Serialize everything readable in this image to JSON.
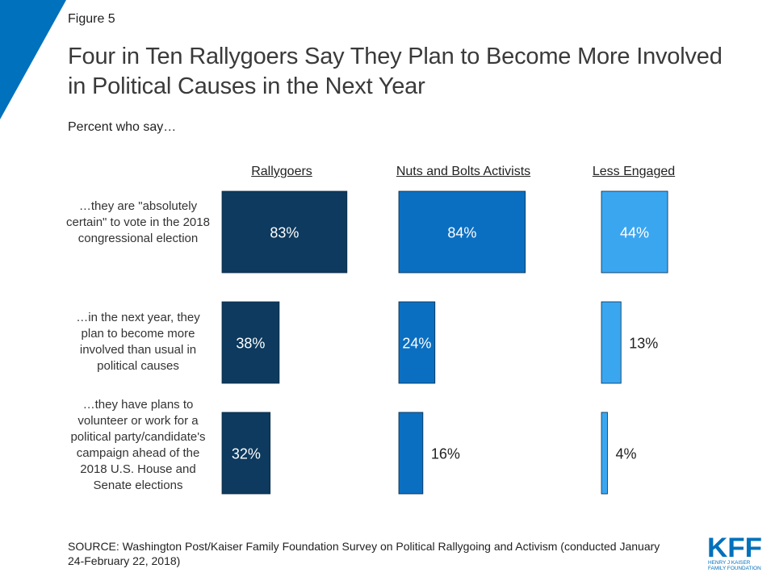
{
  "figure_label": "Figure 5",
  "title": "Four in Ten Rallygoers Say They Plan to Become More Involved in Political Causes in the Next Year",
  "subtitle": "Percent who say…",
  "source": "SOURCE: Washington Post/Kaiser Family Foundation Survey on Political Rallygoing and Activism (conducted January 24-February 22, 2018)",
  "logo": {
    "letters": "KFF",
    "line1": "HENRY J KAISER",
    "line2": "FAMILY FOUNDATION"
  },
  "colors": {
    "accent": "#0071bc",
    "rallygoers": "#0d3a5e",
    "nuts_and_bolts": "#0b6fc1",
    "less_engaged": "#3ba6f0"
  },
  "chart_data": {
    "type": "bar",
    "orientation": "horizontal",
    "layout": "small-multiples",
    "categories": [
      "…they are \"absolutely certain\" to vote  in the 2018 congressional election",
      "…in the  next year, they plan to become more involved  than usual in political  causes",
      "…they have plans to volunteer  or work for a political party/candidate's campaign  ahead of the 2018 U.S. House  and Senate  elections"
    ],
    "series": [
      {
        "name": "Rallygoers",
        "values": [
          83,
          38,
          32
        ],
        "labels": [
          "83%",
          "38%",
          "32%"
        ],
        "color": "#0d3a5e"
      },
      {
        "name": "Nuts and Bolts Activists",
        "values": [
          84,
          24,
          16
        ],
        "labels": [
          "84%",
          "24%",
          "16%"
        ],
        "color": "#0b6fc1"
      },
      {
        "name": "Less Engaged",
        "values": [
          44,
          13,
          4
        ],
        "labels": [
          "44%",
          "13%",
          "4%"
        ],
        "color": "#3ba6f0"
      }
    ],
    "unit": "%",
    "xlim": [
      0,
      100
    ],
    "grid": false
  }
}
